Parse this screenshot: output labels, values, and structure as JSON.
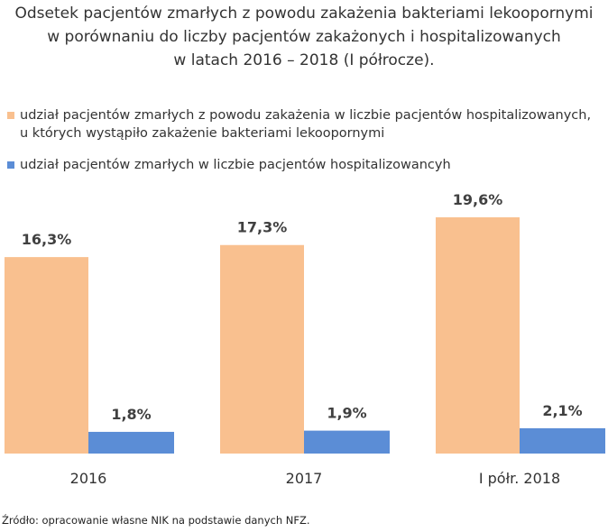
{
  "chart_data": {
    "type": "bar",
    "title": [
      "Odsetek pacjentów zmarłych z powodu zakażenia bakteriami lekoopornymi",
      "w porównaniu do liczby pacjentów zakażonych i hospitalizowanych",
      "w latach 2016 – 2018 (I półrocze)."
    ],
    "categories": [
      "2016",
      "2017",
      "I półr. 2018"
    ],
    "series": [
      {
        "name": "udział pacjentów zmarłych z powodu zakażenia w liczbie pacjentów hospitalizowanych, u których wystąpiło zakażenie bakteriami lekoopornymi",
        "color": "#f9c08f",
        "values": [
          16.3,
          17.3,
          19.6
        ],
        "value_labels": [
          "16,3%",
          "17,3%",
          "19,6%"
        ]
      },
      {
        "name": "udział pacjentów zmarłych w liczbie pacjentów hospitalizowancyh",
        "color": "#5b8dd6",
        "values": [
          1.8,
          1.9,
          2.1
        ],
        "value_labels": [
          "1,8%",
          "1,9%",
          "2,1%"
        ]
      }
    ],
    "source": "Źródło: opracowanie własne NIK na podstawie danych NFZ."
  }
}
